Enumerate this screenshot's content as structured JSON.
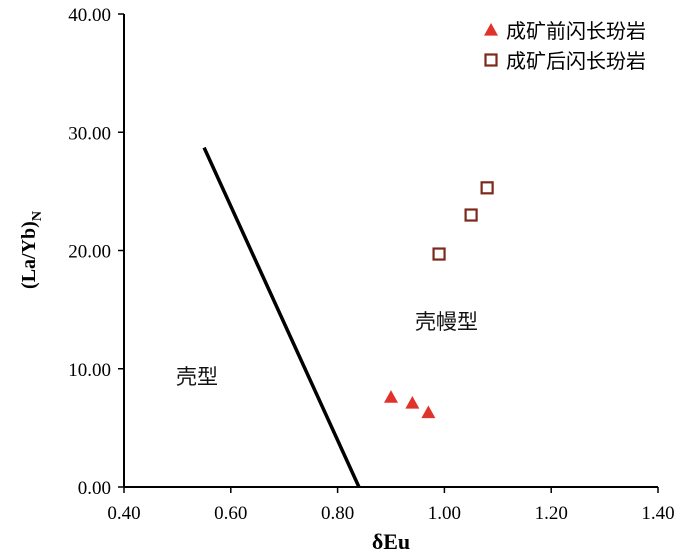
{
  "chart_data": {
    "type": "scatter",
    "title": "",
    "xlabel": "δEu",
    "ylabel": "(La/Yb)N",
    "xlim": [
      0.4,
      1.4
    ],
    "ylim": [
      0,
      40
    ],
    "x_ticks": [
      "0.40",
      "0.60",
      "0.80",
      "1.00",
      "1.20",
      "1.40"
    ],
    "y_ticks": [
      "0.00",
      "10.00",
      "20.00",
      "30.00",
      "40.00"
    ],
    "grid": false,
    "legend_position": "top-right",
    "series": [
      {
        "name": "成矿前闪长玢岩",
        "marker": "filled-triangle",
        "color": "#e0332b",
        "points": [
          {
            "x": 0.9,
            "y": 7.6
          },
          {
            "x": 0.94,
            "y": 7.1
          },
          {
            "x": 0.97,
            "y": 6.3
          }
        ]
      },
      {
        "name": "成矿后闪长玢岩",
        "marker": "open-square",
        "color": "#7b2a1a",
        "points": [
          {
            "x": 0.99,
            "y": 19.7
          },
          {
            "x": 1.05,
            "y": 23.0
          },
          {
            "x": 1.08,
            "y": 25.3
          }
        ]
      }
    ],
    "boundary_line": {
      "x": [
        0.55,
        0.84
      ],
      "y": [
        28.7,
        0.0
      ],
      "color": "#000000"
    },
    "annotations": [
      "壳型",
      "壳幔型"
    ]
  }
}
